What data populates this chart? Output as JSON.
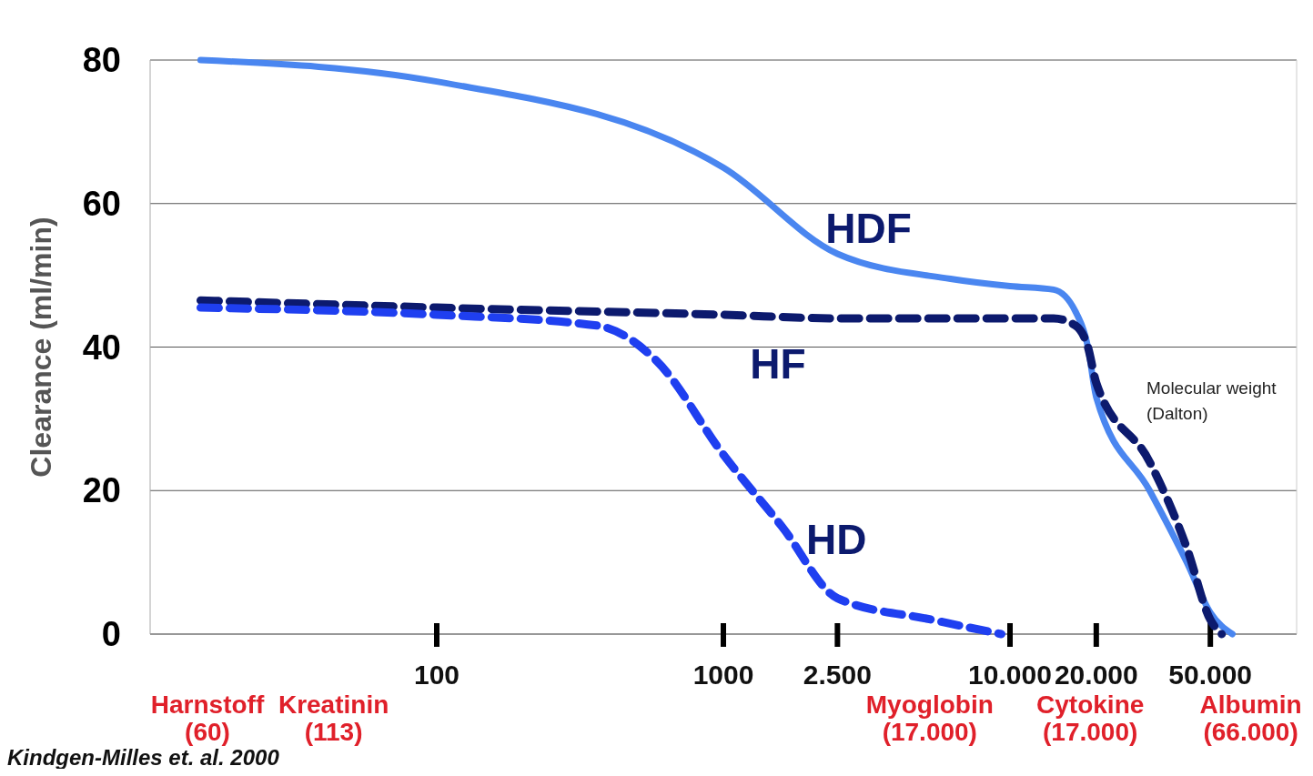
{
  "chart_data": {
    "type": "line",
    "ylabel": "Clearance (ml/min)",
    "xlabel": "Molecular weight (Dalton)",
    "xlim": [
      10,
      100000
    ],
    "xticks": [
      {
        "value": 100,
        "label": "100"
      },
      {
        "value": 1000,
        "label": "1000"
      },
      {
        "value": 2500,
        "label": "2.500"
      },
      {
        "value": 10000,
        "label": "10.000"
      },
      {
        "value": 20000,
        "label": "20.000"
      },
      {
        "value": 50000,
        "label": "50.000"
      }
    ],
    "ylim": [
      0,
      80
    ],
    "yticks": [
      0,
      20,
      40,
      60,
      80
    ],
    "grid": "y",
    "log": "x",
    "legend": false,
    "series": [
      {
        "name": "HDF",
        "color": "#4a86f0",
        "line_style": "solid",
        "x": [
          15,
          100,
          1000,
          2500,
          6200,
          10000,
          14200,
          16900,
          18700,
          20000,
          30700,
          41400,
          50000,
          59700
        ],
        "values": [
          80,
          77,
          65,
          53,
          49.5,
          48.5,
          48,
          45,
          40,
          33,
          20,
          10,
          3,
          0
        ]
      },
      {
        "name": "HF",
        "color": "#0c1a6e",
        "line_style": "dashed",
        "x": [
          15,
          100,
          1000,
          2500,
          10000,
          14200,
          16900,
          18700,
          20000,
          30700,
          41400,
          50000,
          54800
        ],
        "values": [
          46.5,
          45.5,
          44.5,
          44,
          44,
          44,
          43,
          40,
          35,
          24,
          12,
          2,
          0
        ]
      },
      {
        "name": "HD",
        "color": "#1f3ff0",
        "line_style": "dashed",
        "x": [
          15,
          100,
          362,
          587,
          1000,
          1600,
          2500,
          5340,
          9330
        ],
        "values": [
          45.5,
          44.5,
          43,
          38,
          25,
          15,
          5,
          2,
          0
        ]
      }
    ],
    "annotations": [
      "Harnstoff (60)",
      "Kreatinin (113)",
      "Myoglobin (17.000)",
      "Cytokine (17.000)",
      "Albumin (66.000)",
      "Kindgen-Milles et. al. 2000"
    ]
  }
}
